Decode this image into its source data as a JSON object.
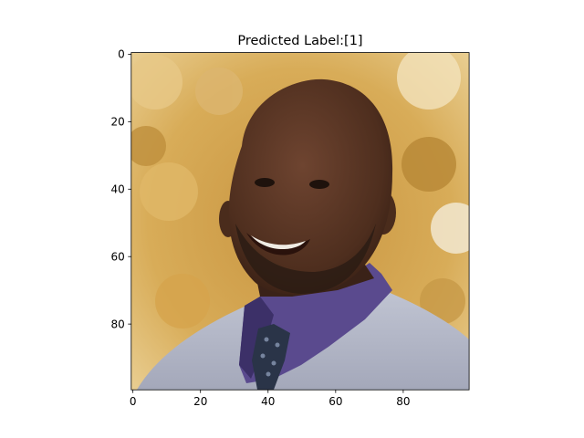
{
  "chart_data": {
    "type": "image",
    "title": "Predicted Label:[1]",
    "xlabel": "",
    "ylabel": "",
    "xlim": [
      -0.5,
      99.5
    ],
    "ylim": [
      99.5,
      -0.5
    ],
    "x_ticks": [
      0,
      20,
      40,
      60,
      80
    ],
    "y_ticks": [
      0,
      20,
      40,
      60,
      80
    ],
    "x_tick_labels": [
      "0",
      "20",
      "40",
      "60",
      "80"
    ],
    "y_tick_labels": [
      "0",
      "20",
      "40",
      "60",
      "80"
    ],
    "image_size": [
      100,
      100
    ],
    "image_content": "pixelated photo of a smiling man with a shaved head and beard, purple shirt, dark patterned tie, light gray sweater, blurred autumn foliage background",
    "grid": false
  },
  "colors": {
    "background_light": "#f0dca8",
    "background_mid": "#d8a848",
    "background_dark": "#a87a30",
    "skin": "#5a3624",
    "skin_shadow": "#3a2218",
    "beard": "#2c1c14",
    "shirt": "#5a4a8e",
    "shirt_dark": "#3c3068",
    "tie": "#2a3448",
    "sweater": "#b4b8c8",
    "sweater_shadow": "#8c90a4",
    "teeth": "#f0ece4"
  }
}
